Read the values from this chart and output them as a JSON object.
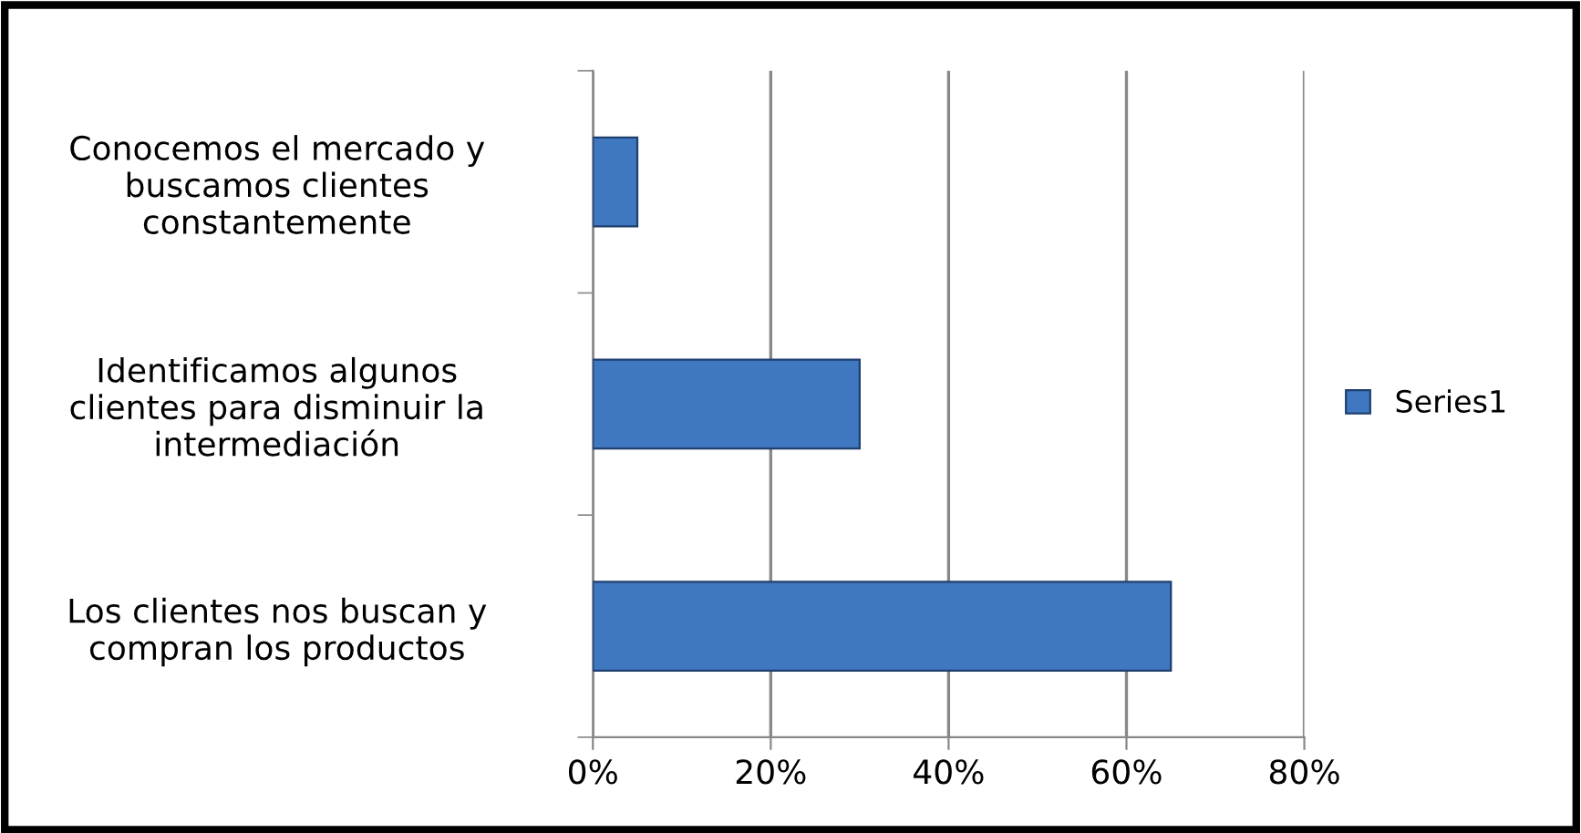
{
  "chart_data": {
    "type": "bar",
    "orientation": "horizontal",
    "categories": [
      "Conocemos el mercado y\nbuscamos clientes\nconstantemente",
      "Identificamos algunos\nclientes para disminuir la\nintermediación",
      "Los clientes nos buscan y\ncompran los productos"
    ],
    "series": [
      {
        "name": "Series1",
        "color": "#3f78c0",
        "values": [
          5,
          30,
          65
        ]
      }
    ],
    "xlim": [
      0,
      80
    ],
    "xticks": [
      {
        "value": 0,
        "label": "0%"
      },
      {
        "value": 20,
        "label": "20%"
      },
      {
        "value": 40,
        "label": "40%"
      },
      {
        "value": 60,
        "label": "60%"
      },
      {
        "value": 80,
        "label": "80%"
      }
    ],
    "grid": "x",
    "legend": "right"
  }
}
